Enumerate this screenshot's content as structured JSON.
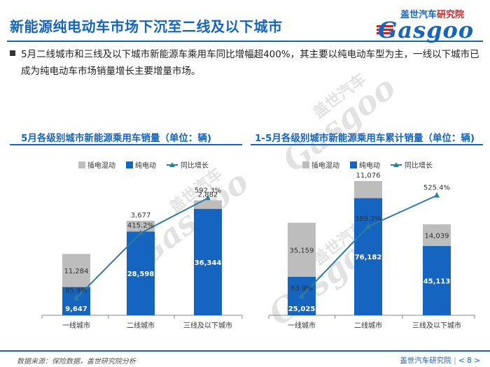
{
  "header": {
    "title": "新能源纯电动车市场下沉至二线及以下城市",
    "logo_cn_a": "盖世汽车",
    "logo_cn_b": "研究院",
    "logo_en": "Gasgoo"
  },
  "summary": "5月二线城市和三线及以下城市新能源车乘用车同比增幅超400%，其主要以纯电动车型为主，一线以下城市已成为纯电动车市场销量增长主要增量市场。",
  "watermarks": {
    "cn": "盖世汽车",
    "en": "Gasgoo"
  },
  "colors": {
    "bev": "#1565c0",
    "phev": "#bdbdbd",
    "growth": "#2e7da0",
    "title": "#1565c0"
  },
  "legend": {
    "phev": "插电混动",
    "bev": "纯电动",
    "growth": "同比增长"
  },
  "chart_data": [
    {
      "type": "bar",
      "stacked": true,
      "title": "5月各级别城市新能源乘用车销量（单位：辆)",
      "categories": [
        "一线城市",
        "二线城市",
        "三线及以下城市"
      ],
      "series": [
        {
          "name": "纯电动",
          "values": [
            9647,
            28598,
            36344
          ],
          "labels": [
            "9,647",
            "28,598",
            "36,344"
          ]
        },
        {
          "name": "插电混动",
          "values": [
            11284,
            3677,
            2882
          ],
          "labels": [
            "11,284",
            "3,677",
            "2,882"
          ]
        }
      ],
      "line": {
        "name": "同比增长",
        "values": [
          85.9,
          415.2,
          592.3
        ],
        "labels": [
          "85.9%",
          "415.2%",
          "592.3%"
        ]
      }
    },
    {
      "type": "bar",
      "stacked": true,
      "title": "1-5月各级别城市新能源乘用车累计销量（单位：辆)",
      "categories": [
        "一线城市",
        "二线城市",
        "三线及以下城市"
      ],
      "series": [
        {
          "name": "纯电动",
          "values": [
            25025,
            76182,
            45113
          ],
          "labels": [
            "25,025",
            "76,182",
            "45,113"
          ]
        },
        {
          "name": "插电混动",
          "values": [
            35159,
            11076,
            14039
          ],
          "labels": [
            "35,159",
            "11,076",
            "14,039"
          ]
        }
      ],
      "line": {
        "name": "同比增长",
        "values": [
          83.9,
          389.2,
          525.4
        ],
        "labels": [
          "83.9%",
          "389.2%",
          "525.4%"
        ]
      }
    }
  ],
  "footer": {
    "source": "数据来源：保险数据，盖世研究院分析",
    "org": "盖世汽车研究院",
    "page": "< 8 >"
  }
}
